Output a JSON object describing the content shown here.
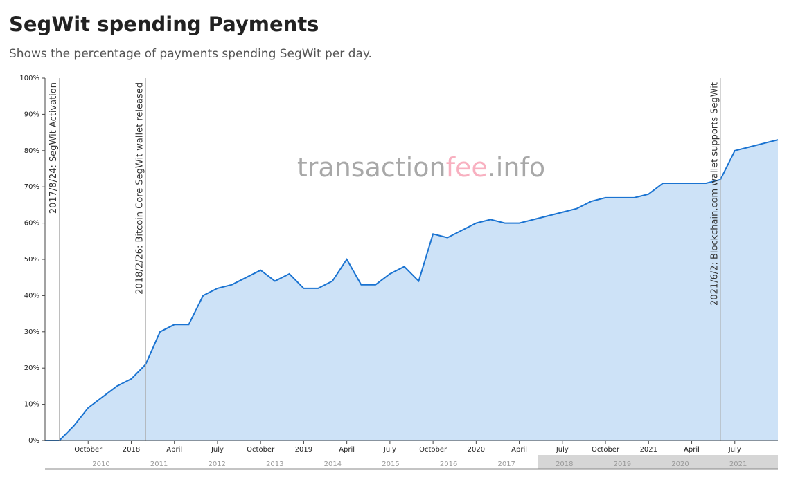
{
  "chart_data": {
    "type": "area",
    "title": "SegWit spending Payments",
    "subtitle": "Shows the percentage of payments spending SegWit per day.",
    "watermark": [
      "transaction",
      "fee",
      ".info"
    ],
    "color": "#1a73d1",
    "fill": "#cde2f7",
    "x": [
      "2017-07",
      "2017-08",
      "2017-09",
      "2017-10",
      "2017-11",
      "2017-12",
      "2018-01",
      "2018-02",
      "2018-03",
      "2018-04",
      "2018-05",
      "2018-06",
      "2018-07",
      "2018-08",
      "2018-09",
      "2018-10",
      "2018-11",
      "2018-12",
      "2019-01",
      "2019-02",
      "2019-03",
      "2019-04",
      "2019-05",
      "2019-06",
      "2019-07",
      "2019-08",
      "2019-09",
      "2019-10",
      "2019-11",
      "2019-12",
      "2020-01",
      "2020-02",
      "2020-03",
      "2020-04",
      "2020-05",
      "2020-06",
      "2020-07",
      "2020-08",
      "2020-09",
      "2020-10",
      "2020-11",
      "2020-12",
      "2021-01",
      "2021-02",
      "2021-03",
      "2021-04",
      "2021-05",
      "2021-06",
      "2021-07",
      "2021-08",
      "2021-09",
      "2021-10"
    ],
    "values": [
      0,
      0,
      4,
      9,
      12,
      15,
      17,
      21,
      30,
      32,
      32,
      40,
      42,
      43,
      45,
      47,
      44,
      46,
      42,
      42,
      44,
      50,
      43,
      43,
      46,
      48,
      44,
      57,
      56,
      58,
      60,
      61,
      60,
      60,
      61,
      62,
      63,
      64,
      66,
      67,
      67,
      67,
      68,
      71,
      71,
      71,
      71,
      72,
      80,
      81,
      82,
      83
    ],
    "xlim": [
      "2017-07",
      "2021-10"
    ],
    "xticks": [
      {
        "value": "2017-10",
        "label": "October"
      },
      {
        "value": "2018-01",
        "label": "2018"
      },
      {
        "value": "2018-04",
        "label": "April"
      },
      {
        "value": "2018-07",
        "label": "July"
      },
      {
        "value": "2018-10",
        "label": "October"
      },
      {
        "value": "2019-01",
        "label": "2019"
      },
      {
        "value": "2019-04",
        "label": "April"
      },
      {
        "value": "2019-07",
        "label": "July"
      },
      {
        "value": "2019-10",
        "label": "October"
      },
      {
        "value": "2020-01",
        "label": "2020"
      },
      {
        "value": "2020-04",
        "label": "April"
      },
      {
        "value": "2020-07",
        "label": "July"
      },
      {
        "value": "2020-10",
        "label": "October"
      },
      {
        "value": "2021-01",
        "label": "2021"
      },
      {
        "value": "2021-04",
        "label": "April"
      },
      {
        "value": "2021-07",
        "label": "July"
      }
    ],
    "ylim": [
      0,
      100
    ],
    "yticks": [
      {
        "value": 0,
        "label": "0%"
      },
      {
        "value": 10,
        "label": "10%"
      },
      {
        "value": 20,
        "label": "20%"
      },
      {
        "value": 30,
        "label": "30%"
      },
      {
        "value": 40,
        "label": "40%"
      },
      {
        "value": 50,
        "label": "50%"
      },
      {
        "value": 60,
        "label": "60%"
      },
      {
        "value": 70,
        "label": "70%"
      },
      {
        "value": 80,
        "label": "80%"
      },
      {
        "value": 90,
        "label": "90%"
      },
      {
        "value": 100,
        "label": "100%"
      }
    ],
    "annotations": [
      {
        "x": "2017-08",
        "text": "2017/8/24: SegWit Activation"
      },
      {
        "x": "2018-02",
        "text": "2018/2/26: Bitcoin Core SegWit wallet released"
      },
      {
        "x": "2021-06",
        "text": "2021/6/2: Blockchain.com wallet supports SegWit"
      }
    ],
    "navigator_labels": [
      "2010",
      "2011",
      "2012",
      "2013",
      "2014",
      "2015",
      "2016",
      "2017",
      "2018",
      "2019",
      "2020",
      "2021"
    ]
  }
}
